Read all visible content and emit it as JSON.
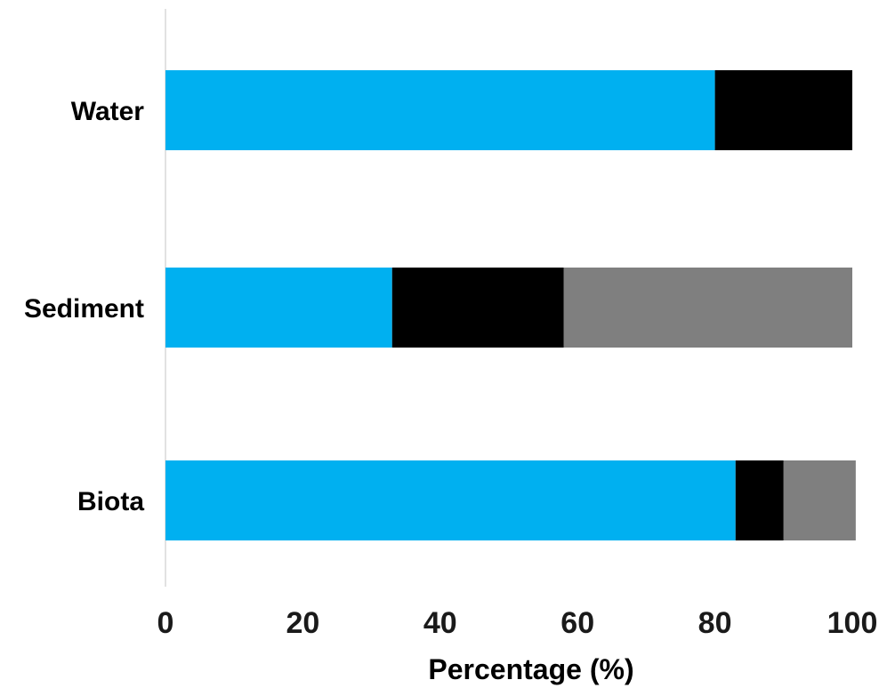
{
  "chart_data": {
    "type": "bar",
    "orientation": "horizontal",
    "stacked": true,
    "title": "",
    "xlabel": "Percentage (%)",
    "ylabel": "",
    "xlim": [
      0,
      100
    ],
    "xticks": [
      0,
      20,
      40,
      60,
      80,
      100
    ],
    "categories": [
      "Water",
      "Sediment",
      "Biota"
    ],
    "series": [
      {
        "color": "#00b0f0",
        "values": [
          80,
          33,
          83
        ]
      },
      {
        "color": "#000000",
        "values": [
          20,
          25,
          7
        ]
      },
      {
        "color": "#7f7f7f",
        "values": [
          0,
          42,
          10.5
        ]
      }
    ],
    "grid": false,
    "legend": "none"
  }
}
